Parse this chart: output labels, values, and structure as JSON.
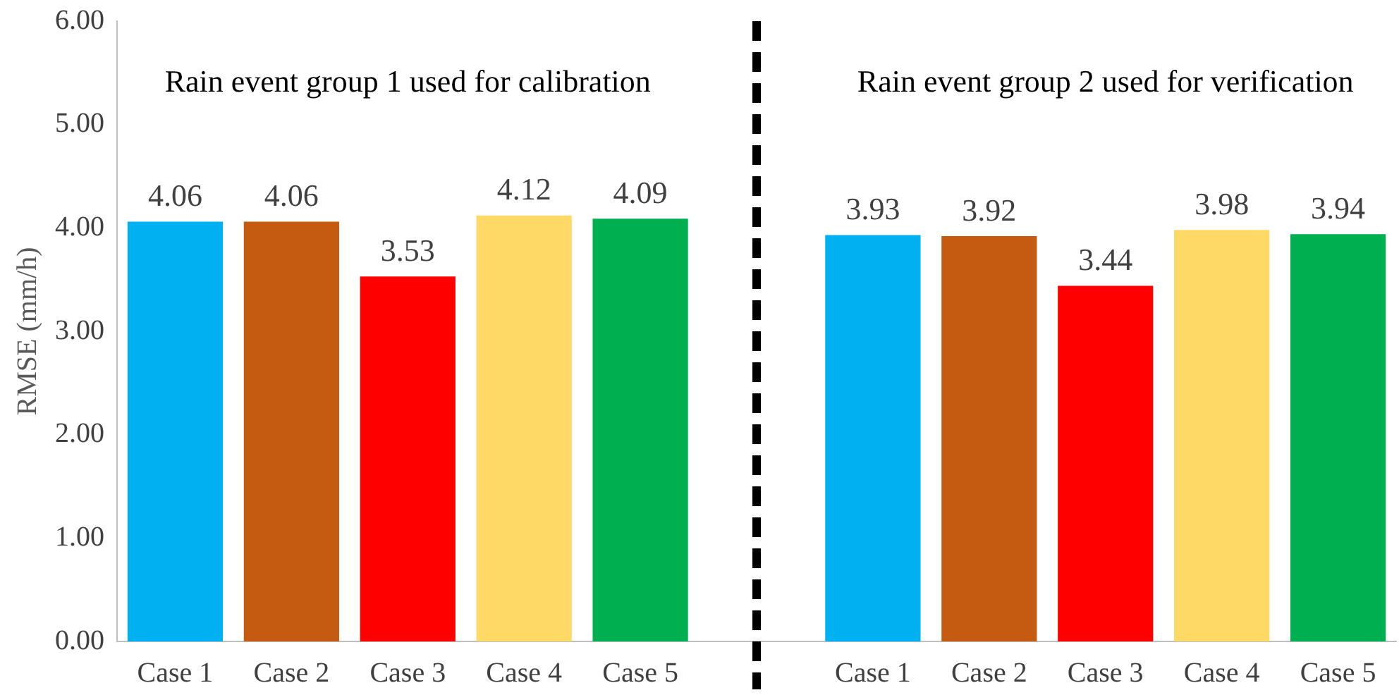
{
  "chart_data": {
    "type": "bar",
    "ylabel": "RMSE (mm/h)",
    "categories": [
      "Case 1",
      "Case 2",
      "Case 3",
      "Case 4",
      "Case 5",
      null,
      "Case 1",
      "Case 2",
      "Case 3",
      "Case 4",
      "Case 5"
    ],
    "values": [
      4.06,
      4.06,
      3.53,
      4.12,
      4.09,
      null,
      3.93,
      3.92,
      3.44,
      3.98,
      3.94
    ],
    "colors": [
      "#00b0f0",
      "#c55a11",
      "#ff0000",
      "#ffd966",
      "#00b050",
      null,
      "#00b0f0",
      "#c55a11",
      "#ff0000",
      "#ffd966",
      "#00b050"
    ],
    "ylim": [
      0,
      6
    ],
    "yticks": [
      {
        "value": 0,
        "label": "0.00"
      },
      {
        "value": 1,
        "label": "1.00"
      },
      {
        "value": 2,
        "label": "2.00"
      },
      {
        "value": 3,
        "label": "3.00"
      },
      {
        "value": 4,
        "label": "4.00"
      },
      {
        "value": 5,
        "label": "5.00"
      },
      {
        "value": 6,
        "label": "6.00"
      }
    ],
    "data_labels": true,
    "legend": false,
    "ref_lines": [
      {
        "axis": "x",
        "color": "#000000",
        "line_style": "dashed"
      }
    ],
    "annotations": [
      "Rain event group 1 used for calibration",
      "Rain event group 2 used for verification"
    ]
  }
}
